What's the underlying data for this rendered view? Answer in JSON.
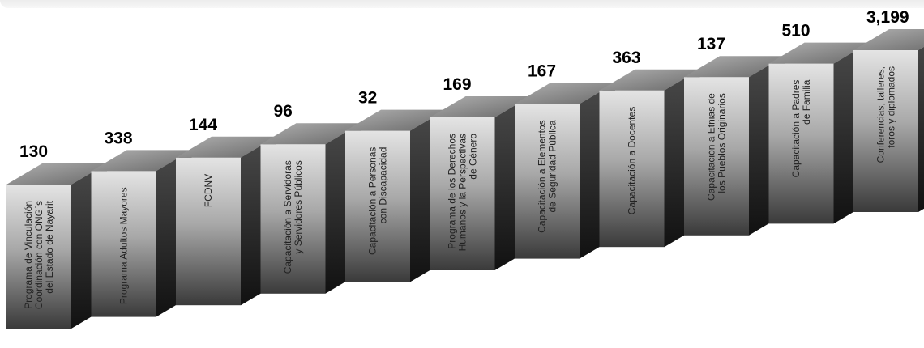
{
  "chart_data": {
    "type": "bar",
    "categories": [
      [
        "Programa de Vinculación",
        "Coordinación con ONG´s",
        "del Estado de Nayarit"
      ],
      [
        "Programa Adultos Mayores"
      ],
      [
        "FCDNV"
      ],
      [
        "Capacitación a Servidoras",
        "y Servidores Públicos"
      ],
      [
        "Capacitación a Personas",
        "con Discapacidad"
      ],
      [
        "Programa de los Derechos",
        "Humanos y la Perspectivas",
        "de Género"
      ],
      [
        "Capacitación a Elementos",
        "de Seguridad Pública"
      ],
      [
        "Capacitación a Docentes"
      ],
      [
        "Capacitación a Etnias  de",
        "los Pueblos Originarios"
      ],
      [
        "Capacitación a Padres",
        "de Familia"
      ],
      [
        "Conferencias, talleres,",
        "foros y diplomados"
      ]
    ],
    "values": [
      130,
      338,
      144,
      96,
      32,
      169,
      167,
      363,
      137,
      510,
      3199
    ],
    "value_labels": [
      "130",
      "338",
      "144",
      "96",
      "32",
      "169",
      "167",
      "363",
      "137",
      "510",
      "3,199"
    ],
    "title": "",
    "xlabel": "",
    "ylabel": "",
    "grid": false,
    "legend": "none",
    "colors": {
      "front_dark": "#3a3a3a",
      "front_light": "#e2e2e2",
      "top": "#8a8a8a",
      "side": "#1e1e1e"
    }
  }
}
